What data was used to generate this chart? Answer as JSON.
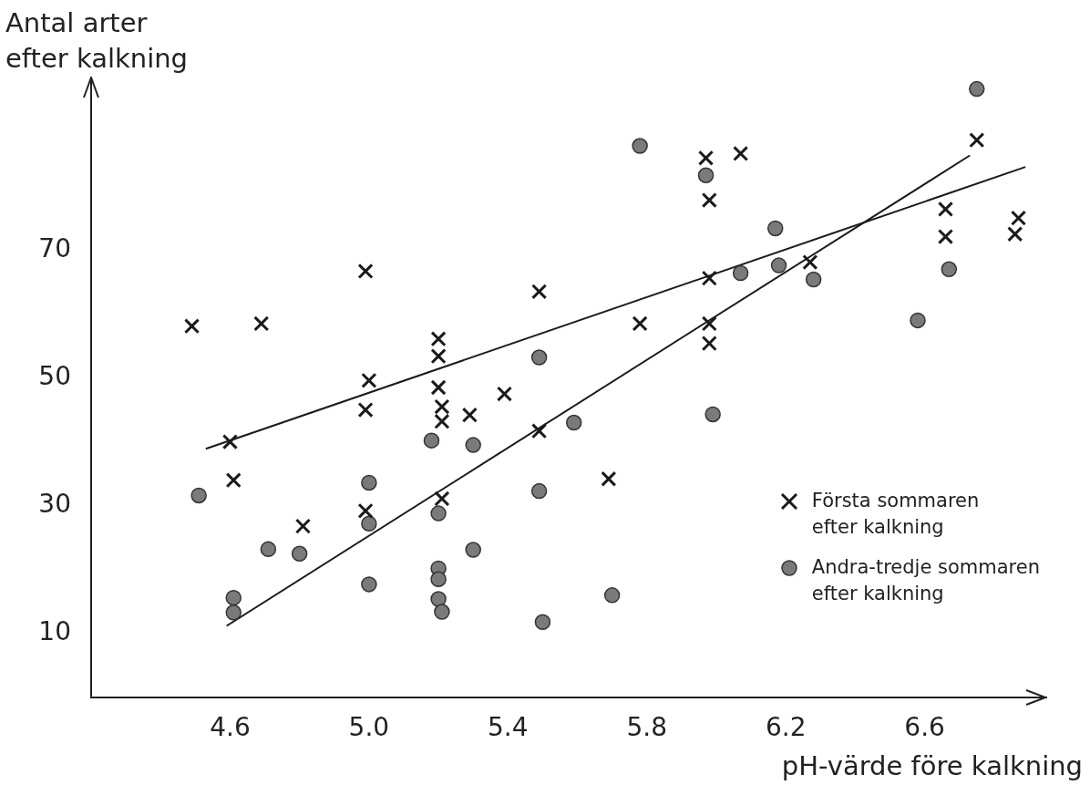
{
  "chart_data": {
    "type": "scatter",
    "xlabel": "pH-värde före kalkning",
    "ylabel": "Antal arter\nefter kalkning",
    "xlim": [
      4.2,
      6.95
    ],
    "ylim": [
      0,
      97
    ],
    "xticks": [
      4.6,
      {
        "value": 5,
        "label": "5.0"
      },
      5.4,
      5.8,
      6.2,
      6.6
    ],
    "yticks": [
      10,
      30,
      50,
      70
    ],
    "grid": false,
    "legend": "right",
    "series": [
      {
        "name": "Första sommaren\nefter kalkning",
        "type": "scatter",
        "marker": "cross",
        "color": "#1a1a1a",
        "x": [
          4.49,
          4.69,
          4.6,
          4.61,
          4.81,
          4.99,
          5.0,
          4.99,
          4.99,
          5.2,
          5.2,
          5.2,
          5.21,
          5.21,
          5.21,
          5.29,
          5.39,
          5.49,
          5.49,
          5.69,
          5.78,
          5.97,
          5.98,
          5.98,
          5.98,
          5.98,
          6.07,
          6.27,
          6.66,
          6.66,
          6.75,
          6.87,
          6.86
        ],
        "values": [
          58.1,
          58.5,
          40.0,
          34.0,
          26.8,
          66.7,
          49.6,
          45.0,
          29.2,
          56.1,
          53.4,
          48.5,
          45.5,
          43.2,
          31.1,
          44.2,
          47.5,
          63.5,
          41.7,
          34.2,
          58.5,
          84.4,
          77.8,
          65.6,
          58.5,
          55.4,
          85.1,
          68.1,
          76.4,
          72.1,
          87.2,
          75.0,
          72.5
        ]
      },
      {
        "name": "Andra-tredje sommaren\nefter kalkning",
        "type": "scatter",
        "marker": "circle",
        "color": "#7a7a7a",
        "x": [
          4.51,
          4.61,
          4.61,
          4.71,
          4.8,
          5.0,
          5.0,
          5.0,
          5.18,
          5.2,
          5.2,
          5.2,
          5.2,
          5.21,
          5.3,
          5.3,
          5.49,
          5.49,
          5.5,
          5.59,
          5.7,
          5.78,
          5.97,
          5.99,
          6.07,
          6.17,
          6.18,
          6.28,
          6.58,
          6.67,
          6.75
        ],
        "values": [
          31.6,
          15.6,
          13.3,
          23.2,
          22.5,
          33.6,
          27.2,
          17.7,
          40.2,
          28.8,
          20.2,
          18.5,
          15.4,
          13.4,
          39.5,
          23.1,
          53.2,
          32.3,
          11.8,
          43.0,
          16.0,
          86.3,
          81.7,
          44.3,
          66.4,
          73.4,
          67.6,
          65.4,
          59.0,
          67.0,
          95.2
        ]
      },
      {
        "type": "line",
        "marker": "none",
        "line_style": "solid",
        "color": "#1a1a1a",
        "x": [
          4.53,
          6.89
        ],
        "values": [
          38.9,
          83.0
        ]
      },
      {
        "type": "line",
        "marker": "none",
        "line_style": "solid",
        "color": "#1a1a1a",
        "x": [
          4.59,
          6.73
        ],
        "values": [
          11.2,
          84.8
        ]
      }
    ]
  }
}
